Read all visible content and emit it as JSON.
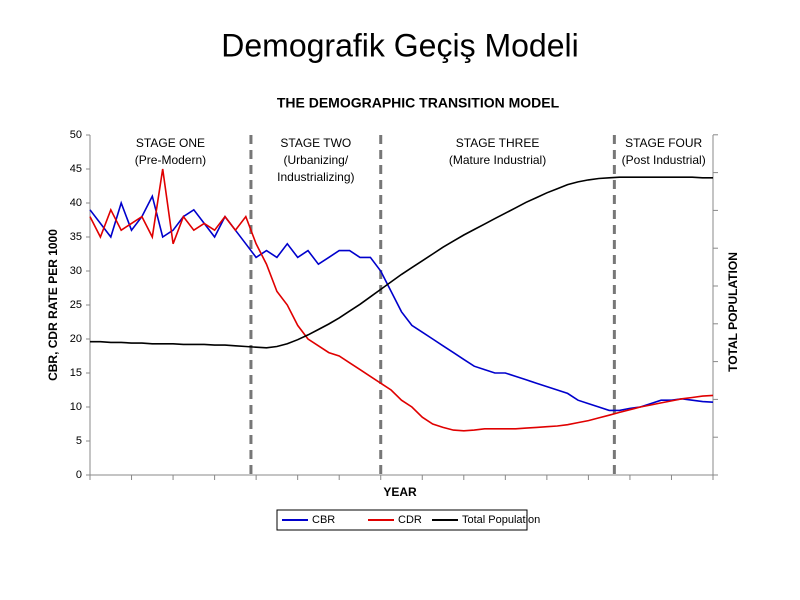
{
  "heading": "Demografik Geçiş Modeli",
  "chart_data": {
    "type": "line",
    "title": "THE DEMOGRAPHIC TRANSITION MODEL",
    "xlabel": "YEAR",
    "ylabel": "CBR, CDR RATE PER 1000",
    "y2label": "TOTAL POPULATION",
    "x": [
      0,
      1,
      2,
      3,
      4,
      5,
      6,
      7,
      8,
      9,
      10,
      11,
      12,
      13,
      14,
      15,
      16,
      17,
      18,
      19,
      20,
      21,
      22,
      23,
      24,
      25,
      26,
      27,
      28,
      29,
      30,
      31,
      32,
      33,
      34,
      35,
      36,
      37,
      38,
      39,
      40,
      41,
      42,
      43,
      44,
      45,
      46,
      47,
      48,
      49,
      50,
      51,
      52,
      53,
      54,
      55,
      56,
      57,
      58,
      59,
      60
    ],
    "xlim": [
      0,
      60
    ],
    "ylim": [
      0,
      50
    ],
    "yticks": [
      0,
      5,
      10,
      15,
      20,
      25,
      30,
      35,
      40,
      45,
      50
    ],
    "stage_boundaries": [
      15.5,
      28,
      50.5
    ],
    "stages": [
      {
        "name": "STAGE ONE",
        "description": [
          "(Pre-Modern)"
        ]
      },
      {
        "name": "STAGE TWO",
        "description": [
          "(Urbanizing/",
          "Industrializing)"
        ]
      },
      {
        "name": "STAGE THREE",
        "description": [
          "(Mature Industrial)"
        ]
      },
      {
        "name": "STAGE FOUR",
        "description": [
          "(Post Industrial)"
        ]
      }
    ],
    "series": [
      {
        "name": "CBR",
        "color": "#0000cc",
        "values": [
          39,
          37,
          35,
          40,
          36,
          38,
          41,
          35,
          36,
          38,
          39,
          37,
          35,
          38,
          36,
          34,
          32,
          33,
          32,
          34,
          32,
          33,
          31,
          32,
          33,
          33,
          32,
          32,
          30,
          27,
          24,
          22,
          21,
          20,
          19,
          18,
          17,
          16,
          15.5,
          15,
          15,
          14.5,
          14,
          13.5,
          13,
          12.5,
          12,
          11,
          10.5,
          10,
          9.5,
          9.5,
          9.8,
          10,
          10.5,
          11,
          11,
          11.2,
          11,
          10.8,
          10.7
        ]
      },
      {
        "name": "CDR",
        "color": "#e00000",
        "values": [
          38,
          35,
          39,
          36,
          37,
          38,
          35,
          45,
          34,
          38,
          36,
          37,
          36,
          38,
          36,
          38,
          34,
          31,
          27,
          25,
          22,
          20,
          19,
          18,
          17.5,
          16.5,
          15.5,
          14.5,
          13.5,
          12.5,
          11,
          10,
          8.5,
          7.5,
          7,
          6.6,
          6.5,
          6.6,
          6.8,
          6.8,
          6.8,
          6.8,
          6.9,
          7,
          7.1,
          7.2,
          7.4,
          7.7,
          8,
          8.4,
          8.8,
          9.2,
          9.6,
          10,
          10.3,
          10.6,
          10.9,
          11.2,
          11.4,
          11.6,
          11.7
        ]
      },
      {
        "name": "Total Population",
        "color": "#000000",
        "values": [
          19.6,
          19.6,
          19.5,
          19.5,
          19.4,
          19.4,
          19.3,
          19.3,
          19.3,
          19.2,
          19.2,
          19.2,
          19.1,
          19.1,
          19.0,
          18.9,
          18.8,
          18.7,
          18.9,
          19.3,
          19.9,
          20.6,
          21.4,
          22.2,
          23.1,
          24.1,
          25.1,
          26.2,
          27.3,
          28.4,
          29.5,
          30.5,
          31.5,
          32.5,
          33.5,
          34.4,
          35.3,
          36.1,
          36.9,
          37.7,
          38.5,
          39.3,
          40.1,
          40.8,
          41.5,
          42.1,
          42.7,
          43.1,
          43.4,
          43.6,
          43.7,
          43.8,
          43.8,
          43.8,
          43.8,
          43.8,
          43.8,
          43.8,
          43.8,
          43.7,
          43.7
        ]
      }
    ]
  }
}
